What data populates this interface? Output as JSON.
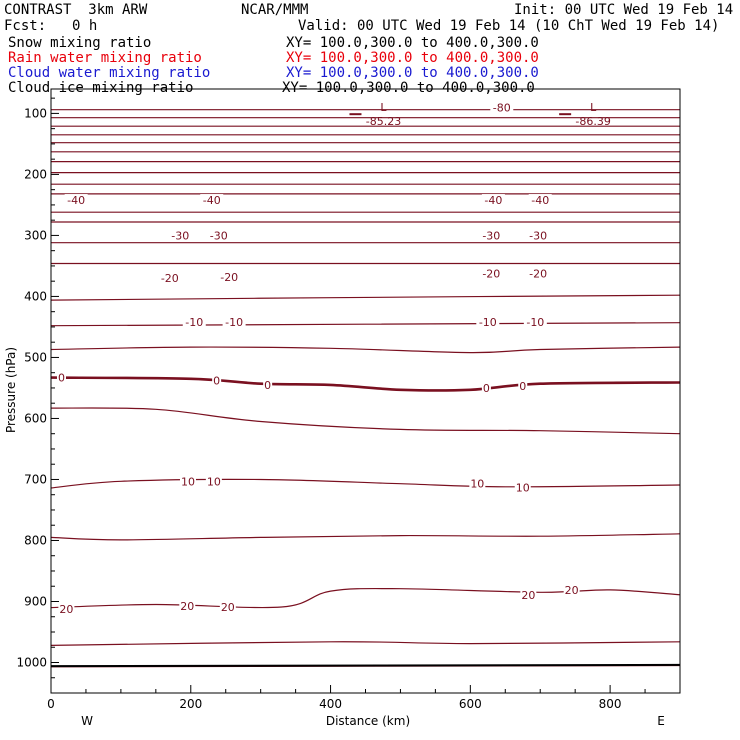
{
  "header": {
    "model": "CONTRAST  3km ARW",
    "org": "NCAR/MMM",
    "init": "Init: 00 UTC Wed 19 Feb 14",
    "fcst_label": "Fcst:",
    "fcst_value": "0 h",
    "valid": "Valid: 00 UTC Wed 19 Feb 14 (10 ChT Wed 19 Feb 14)"
  },
  "fields": [
    {
      "name": "Snow mixing ratio",
      "xy": "XY= 100.0,300.0 to 400.0,300.0",
      "color": "#000000"
    },
    {
      "name": "Rain water mixing ratio",
      "xy": "XY= 100.0,300.0 to 400.0,300.0",
      "color": "#e8000b"
    },
    {
      "name": "Cloud water mixing ratio",
      "xy": "XY= 100.0,300.0 to 400.0,300.0",
      "color": "#1a1ad0"
    },
    {
      "name": "Cloud ice mixing ratio",
      "xy": "XY= 100.0,300.0 to 400.0,300.0",
      "color": "#000000"
    }
  ],
  "colors": {
    "contour": "#7a1020",
    "axes": "#000000"
  },
  "chart_data": {
    "type": "line",
    "xlabel": "Distance (km)",
    "ylabel": "Pressure (hPa)",
    "xlim": [
      0,
      900
    ],
    "ylim": [
      1050,
      60
    ],
    "x_ticks": [
      0,
      200,
      400,
      600,
      800
    ],
    "y_ticks": [
      100,
      200,
      300,
      400,
      500,
      600,
      700,
      800,
      900,
      1000
    ],
    "x_end_labels": {
      "left": "W",
      "right": "E"
    },
    "contour_units": "temperature (C)",
    "contours": [
      {
        "level": "",
        "pts": [
          [
            0,
            94
          ],
          [
            900,
            94
          ]
        ]
      },
      {
        "level": "",
        "pts": [
          [
            0,
            107
          ],
          [
            900,
            107
          ]
        ]
      },
      {
        "level": "",
        "pts": [
          [
            0,
            121
          ],
          [
            900,
            121
          ]
        ]
      },
      {
        "level": "",
        "pts": [
          [
            0,
            135
          ],
          [
            900,
            135
          ]
        ]
      },
      {
        "level": "",
        "pts": [
          [
            0,
            148
          ],
          [
            900,
            148
          ]
        ]
      },
      {
        "level": "",
        "pts": [
          [
            0,
            163
          ],
          [
            900,
            163
          ]
        ]
      },
      {
        "level": "",
        "pts": [
          [
            0,
            179
          ],
          [
            900,
            179
          ]
        ]
      },
      {
        "level": "",
        "pts": [
          [
            0,
            197
          ],
          [
            900,
            197
          ]
        ]
      },
      {
        "level": "",
        "pts": [
          [
            0,
            216
          ],
          [
            900,
            216
          ]
        ]
      },
      {
        "level": "",
        "pts": [
          [
            0,
            232
          ],
          [
            900,
            232
          ]
        ]
      },
      {
        "level": "",
        "pts": [
          [
            0,
            262
          ],
          [
            900,
            262
          ]
        ]
      },
      {
        "level": "",
        "pts": [
          [
            0,
            278
          ],
          [
            900,
            278
          ]
        ]
      },
      {
        "level": "",
        "pts": [
          [
            0,
            312
          ],
          [
            900,
            312
          ]
        ]
      },
      {
        "level": "",
        "pts": [
          [
            0,
            346
          ],
          [
            900,
            346
          ]
        ]
      },
      {
        "level": "",
        "pts": [
          [
            0,
            406
          ],
          [
            400,
            402
          ],
          [
            900,
            398
          ]
        ]
      },
      {
        "level": "",
        "pts": [
          [
            0,
            448
          ],
          [
            900,
            443
          ]
        ]
      },
      {
        "level": "",
        "pts": [
          [
            0,
            487
          ],
          [
            200,
            483
          ],
          [
            400,
            485
          ],
          [
            600,
            492
          ],
          [
            700,
            487
          ],
          [
            900,
            483
          ]
        ]
      },
      {
        "level": 0,
        "bold": true,
        "pts": [
          [
            0,
            533
          ],
          [
            200,
            535
          ],
          [
            300,
            543
          ],
          [
            400,
            545
          ],
          [
            500,
            553
          ],
          [
            600,
            553
          ],
          [
            700,
            543
          ],
          [
            900,
            541
          ]
        ]
      },
      {
        "level": "",
        "pts": [
          [
            0,
            583
          ],
          [
            150,
            585
          ],
          [
            300,
            605
          ],
          [
            500,
            618
          ],
          [
            700,
            620
          ],
          [
            900,
            625
          ]
        ]
      },
      {
        "level": 10,
        "pts": [
          [
            0,
            714
          ],
          [
            100,
            703
          ],
          [
            300,
            700
          ],
          [
            500,
            707
          ],
          [
            650,
            712
          ],
          [
            900,
            709
          ]
        ]
      },
      {
        "level": "",
        "pts": [
          [
            0,
            795
          ],
          [
            100,
            799
          ],
          [
            300,
            795
          ],
          [
            500,
            792
          ],
          [
            700,
            793
          ],
          [
            900,
            789
          ]
        ]
      },
      {
        "level": 20,
        "pts": [
          [
            0,
            910
          ],
          [
            150,
            905
          ],
          [
            330,
            909
          ],
          [
            400,
            883
          ],
          [
            500,
            879
          ],
          [
            700,
            885
          ],
          [
            800,
            881
          ],
          [
            900,
            889
          ]
        ]
      },
      {
        "level": "",
        "pts": [
          [
            0,
            972
          ],
          [
            400,
            966
          ],
          [
            600,
            969
          ],
          [
            900,
            966
          ]
        ]
      },
      {
        "level": "",
        "pts": [
          [
            0,
            1007
          ],
          [
            900,
            1005
          ]
        ]
      }
    ],
    "contour_labels": [
      {
        "text": "-80",
        "x": 645,
        "p": 90
      },
      {
        "text": "-40",
        "x": 36,
        "p": 242
      },
      {
        "text": "-40",
        "x": 230,
        "p": 242
      },
      {
        "text": "-40",
        "x": 633,
        "p": 242
      },
      {
        "text": "-40",
        "x": 700,
        "p": 242
      },
      {
        "text": "-30",
        "x": 185,
        "p": 300
      },
      {
        "text": "-30",
        "x": 240,
        "p": 300
      },
      {
        "text": "-30",
        "x": 630,
        "p": 300
      },
      {
        "text": "-30",
        "x": 697,
        "p": 300
      },
      {
        "text": "-20",
        "x": 170,
        "p": 370
      },
      {
        "text": "-20",
        "x": 255,
        "p": 368
      },
      {
        "text": "-20",
        "x": 630,
        "p": 362
      },
      {
        "text": "-20",
        "x": 697,
        "p": 362
      },
      {
        "text": "-10",
        "x": 205,
        "p": 442
      },
      {
        "text": "-10",
        "x": 262,
        "p": 442
      },
      {
        "text": "-10",
        "x": 625,
        "p": 442
      },
      {
        "text": "-10",
        "x": 693,
        "p": 442
      },
      {
        "text": "0",
        "x": 15,
        "p": 533
      },
      {
        "text": "0",
        "x": 237,
        "p": 538
      },
      {
        "text": "0",
        "x": 310,
        "p": 545
      },
      {
        "text": "0",
        "x": 623,
        "p": 550
      },
      {
        "text": "0",
        "x": 675,
        "p": 547
      },
      {
        "text": "10",
        "x": 196,
        "p": 703
      },
      {
        "text": "10",
        "x": 233,
        "p": 703
      },
      {
        "text": "10",
        "x": 610,
        "p": 707
      },
      {
        "text": "10",
        "x": 675,
        "p": 713
      },
      {
        "text": "20",
        "x": 22,
        "p": 912
      },
      {
        "text": "20",
        "x": 195,
        "p": 907
      },
      {
        "text": "20",
        "x": 253,
        "p": 909
      },
      {
        "text": "20",
        "x": 683,
        "p": 889
      },
      {
        "text": "20",
        "x": 745,
        "p": 881
      }
    ],
    "lows": [
      {
        "label": "L",
        "value": "-85.23",
        "x": 470,
        "p": 98
      },
      {
        "label": "L",
        "value": "-86.39",
        "x": 770,
        "p": 98
      }
    ]
  }
}
